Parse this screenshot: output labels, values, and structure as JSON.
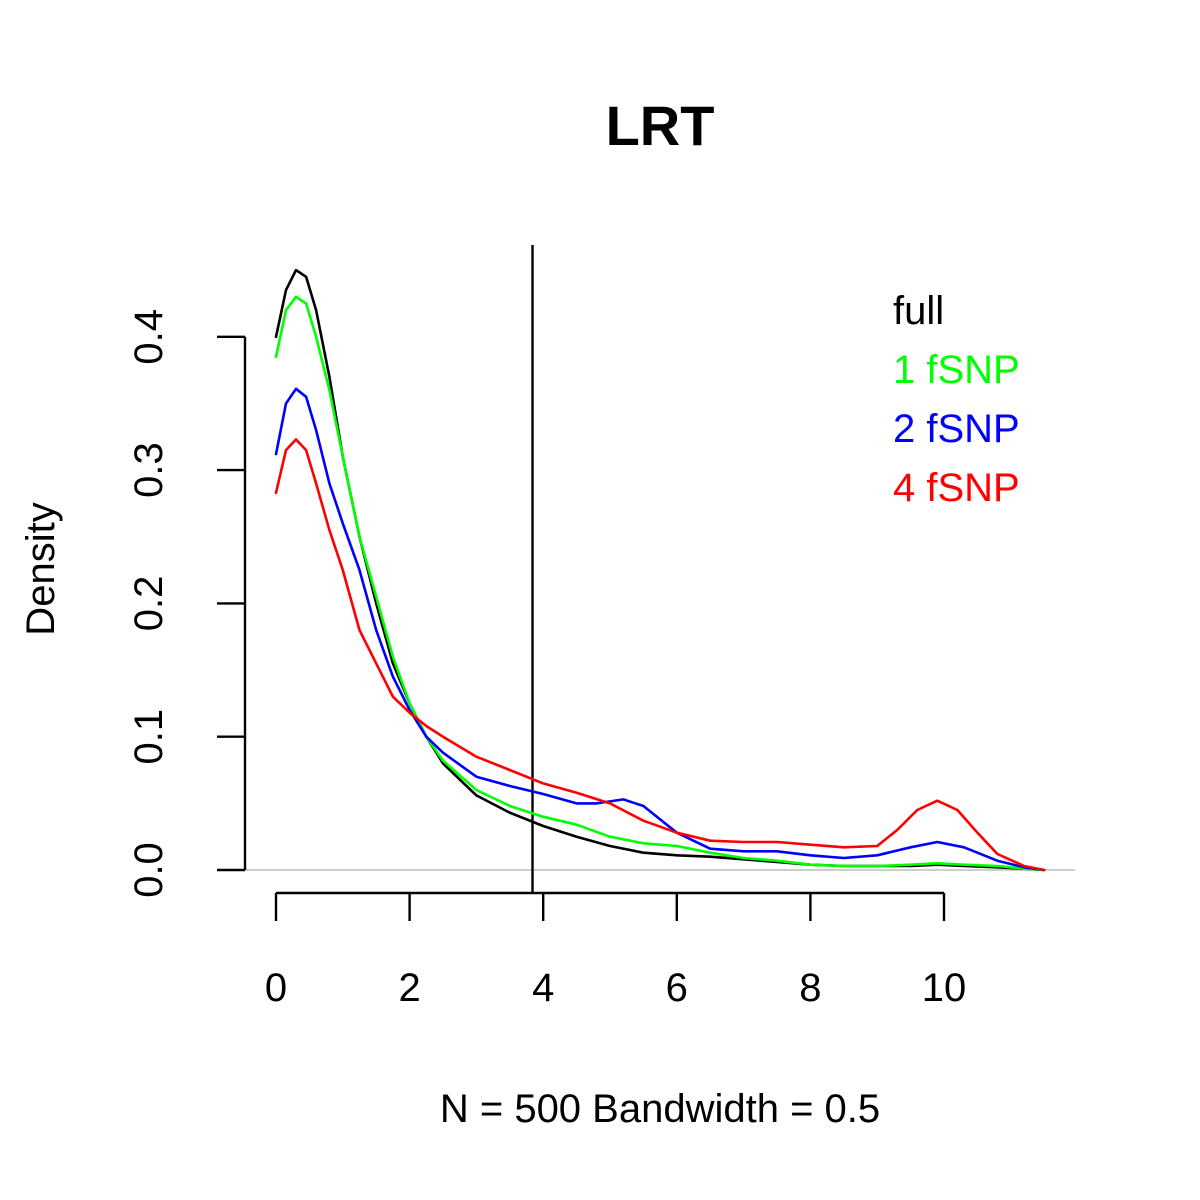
{
  "chart_data": {
    "type": "line",
    "title": "LRT",
    "xlabel": "N = 500   Bandwidth = 0.5",
    "ylabel": "Density",
    "xlim": [
      0,
      11.7
    ],
    "ylim": [
      0,
      0.47
    ],
    "x_ticks": [
      {
        "value": 0,
        "label": "0"
      },
      {
        "value": 2,
        "label": "2"
      },
      {
        "value": 4,
        "label": "4"
      },
      {
        "value": 6,
        "label": "6"
      },
      {
        "value": 8,
        "label": "8"
      },
      {
        "value": 10,
        "label": "10"
      }
    ],
    "y_ticks": [
      {
        "value": 0.0,
        "label": "0.0"
      },
      {
        "value": 0.1,
        "label": "0.1"
      },
      {
        "value": 0.2,
        "label": "0.2"
      },
      {
        "value": 0.3,
        "label": "0.3"
      },
      {
        "value": 0.4,
        "label": "0.4"
      }
    ],
    "reference_line_x": 3.84,
    "baseline_y": 0,
    "grid": false,
    "legend_position": "top-right",
    "series": [
      {
        "name": "full",
        "color": "#000000",
        "x": [
          0,
          0.15,
          0.3,
          0.45,
          0.6,
          0.8,
          1.0,
          1.25,
          1.5,
          1.75,
          2.0,
          2.25,
          2.5,
          3.0,
          3.5,
          4.0,
          4.5,
          5.0,
          5.5,
          6.0,
          6.5,
          7.0,
          7.5,
          8.0,
          8.5,
          9.0,
          9.5,
          9.9,
          10.3,
          10.8,
          11.2,
          11.5
        ],
        "y": [
          0.4,
          0.435,
          0.45,
          0.445,
          0.42,
          0.37,
          0.31,
          0.25,
          0.2,
          0.155,
          0.125,
          0.1,
          0.08,
          0.056,
          0.043,
          0.033,
          0.025,
          0.018,
          0.013,
          0.011,
          0.01,
          0.008,
          0.006,
          0.004,
          0.003,
          0.003,
          0.003,
          0.004,
          0.003,
          0.002,
          0.001,
          0.0
        ]
      },
      {
        "name": "1 fSNP",
        "color": "#00ff00",
        "x": [
          0,
          0.15,
          0.3,
          0.45,
          0.6,
          0.8,
          1.0,
          1.25,
          1.5,
          1.75,
          2.0,
          2.25,
          2.5,
          3.0,
          3.5,
          4.0,
          4.5,
          5.0,
          5.5,
          6.0,
          6.5,
          7.0,
          7.5,
          8.0,
          8.5,
          9.0,
          9.5,
          9.9,
          10.3,
          10.8,
          11.2,
          11.5
        ],
        "y": [
          0.385,
          0.42,
          0.43,
          0.425,
          0.4,
          0.36,
          0.31,
          0.25,
          0.205,
          0.16,
          0.125,
          0.1,
          0.082,
          0.06,
          0.048,
          0.04,
          0.034,
          0.025,
          0.02,
          0.018,
          0.013,
          0.009,
          0.007,
          0.004,
          0.003,
          0.003,
          0.004,
          0.005,
          0.004,
          0.003,
          0.001,
          0.0
        ]
      },
      {
        "name": "2 fSNP",
        "color": "#0000ff",
        "x": [
          0,
          0.15,
          0.3,
          0.45,
          0.6,
          0.8,
          1.0,
          1.25,
          1.5,
          1.75,
          2.0,
          2.25,
          2.5,
          3.0,
          3.5,
          4.0,
          4.5,
          4.8,
          5.2,
          5.5,
          6.0,
          6.5,
          7.0,
          7.5,
          8.0,
          8.5,
          9.0,
          9.5,
          9.9,
          10.3,
          10.8,
          11.2,
          11.5
        ],
        "y": [
          0.312,
          0.35,
          0.361,
          0.355,
          0.33,
          0.29,
          0.26,
          0.225,
          0.18,
          0.145,
          0.12,
          0.1,
          0.088,
          0.07,
          0.063,
          0.057,
          0.05,
          0.05,
          0.053,
          0.048,
          0.028,
          0.016,
          0.014,
          0.014,
          0.011,
          0.009,
          0.011,
          0.017,
          0.021,
          0.017,
          0.007,
          0.002,
          0.0
        ]
      },
      {
        "name": "4 fSNP",
        "color": "#ff0000",
        "x": [
          0,
          0.15,
          0.3,
          0.45,
          0.6,
          0.8,
          1.0,
          1.25,
          1.5,
          1.75,
          2.0,
          2.25,
          2.5,
          3.0,
          3.5,
          4.0,
          4.5,
          5.0,
          5.5,
          6.0,
          6.5,
          7.0,
          7.5,
          8.0,
          8.5,
          9.0,
          9.3,
          9.6,
          9.9,
          10.2,
          10.5,
          10.8,
          11.2,
          11.5
        ],
        "y": [
          0.283,
          0.315,
          0.323,
          0.315,
          0.29,
          0.255,
          0.225,
          0.18,
          0.155,
          0.13,
          0.118,
          0.108,
          0.1,
          0.085,
          0.075,
          0.065,
          0.058,
          0.05,
          0.037,
          0.028,
          0.022,
          0.021,
          0.021,
          0.019,
          0.017,
          0.018,
          0.03,
          0.045,
          0.052,
          0.045,
          0.028,
          0.012,
          0.003,
          0.0
        ]
      }
    ]
  }
}
